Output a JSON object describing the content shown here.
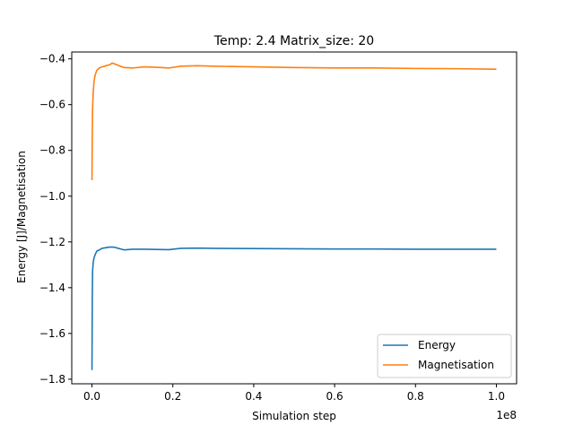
{
  "chart_data": {
    "type": "line",
    "title": "Temp: 2.4 Matrix_size: 20",
    "xlabel": "Simulation step",
    "ylabel": "Energy [J]/Magnetisation",
    "x_scale_label": "1e8",
    "xlim": [
      -0.05,
      1.05
    ],
    "ylim": [
      -1.82,
      -0.37
    ],
    "x_ticks": [
      0.0,
      0.2,
      0.4,
      0.6,
      0.8,
      1.0
    ],
    "x_tick_labels": [
      "0.0",
      "0.2",
      "0.4",
      "0.6",
      "0.8",
      "1.0"
    ],
    "y_ticks": [
      -1.8,
      -1.6,
      -1.4,
      -1.2,
      -1.0,
      -0.8,
      -0.6,
      -0.4
    ],
    "y_tick_labels": [
      "−1.8",
      "−1.6",
      "−1.4",
      "−1.2",
      "−1.0",
      "−0.8",
      "−0.6",
      "−0.4"
    ],
    "grid": false,
    "legend_position": "lower-right",
    "series": [
      {
        "name": "Energy",
        "color": "#1f77b4",
        "points": [
          [
            0.0,
            -1.76
          ],
          [
            0.0008,
            -1.45
          ],
          [
            0.0015,
            -1.33
          ],
          [
            0.003,
            -1.29
          ],
          [
            0.005,
            -1.27
          ],
          [
            0.008,
            -1.255
          ],
          [
            0.012,
            -1.24
          ],
          [
            0.018,
            -1.235
          ],
          [
            0.025,
            -1.228
          ],
          [
            0.035,
            -1.225
          ],
          [
            0.045,
            -1.222
          ],
          [
            0.055,
            -1.223
          ],
          [
            0.065,
            -1.228
          ],
          [
            0.08,
            -1.235
          ],
          [
            0.1,
            -1.232
          ],
          [
            0.13,
            -1.232
          ],
          [
            0.16,
            -1.233
          ],
          [
            0.19,
            -1.234
          ],
          [
            0.22,
            -1.228
          ],
          [
            0.26,
            -1.227
          ],
          [
            0.3,
            -1.228
          ],
          [
            0.4,
            -1.229
          ],
          [
            0.5,
            -1.23
          ],
          [
            0.6,
            -1.231
          ],
          [
            0.7,
            -1.231
          ],
          [
            0.8,
            -1.232
          ],
          [
            0.9,
            -1.232
          ],
          [
            1.0,
            -1.232
          ]
        ]
      },
      {
        "name": "Magnetisation",
        "color": "#ff7f0e",
        "points": [
          [
            0.0,
            -0.93
          ],
          [
            0.0008,
            -0.72
          ],
          [
            0.0015,
            -0.62
          ],
          [
            0.003,
            -0.55
          ],
          [
            0.005,
            -0.5
          ],
          [
            0.008,
            -0.47
          ],
          [
            0.012,
            -0.45
          ],
          [
            0.018,
            -0.44
          ],
          [
            0.025,
            -0.435
          ],
          [
            0.035,
            -0.43
          ],
          [
            0.045,
            -0.425
          ],
          [
            0.05,
            -0.418
          ],
          [
            0.06,
            -0.425
          ],
          [
            0.07,
            -0.432
          ],
          [
            0.08,
            -0.438
          ],
          [
            0.1,
            -0.44
          ],
          [
            0.13,
            -0.435
          ],
          [
            0.16,
            -0.437
          ],
          [
            0.19,
            -0.44
          ],
          [
            0.22,
            -0.432
          ],
          [
            0.26,
            -0.43
          ],
          [
            0.3,
            -0.432
          ],
          [
            0.4,
            -0.435
          ],
          [
            0.5,
            -0.438
          ],
          [
            0.6,
            -0.44
          ],
          [
            0.7,
            -0.44
          ],
          [
            0.8,
            -0.442
          ],
          [
            0.9,
            -0.443
          ],
          [
            1.0,
            -0.445
          ]
        ]
      }
    ]
  }
}
